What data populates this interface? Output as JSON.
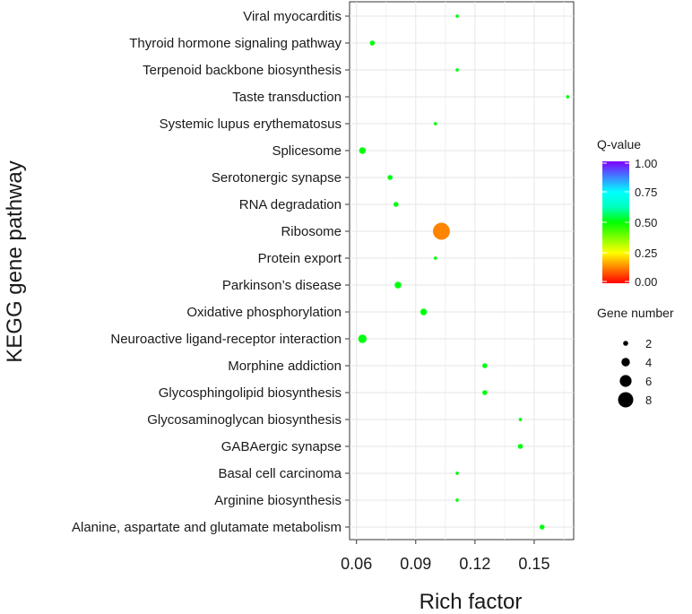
{
  "chart_data": {
    "type": "scatter",
    "xlabel": "Rich factor",
    "ylabel": "KEGG gene pathway",
    "xlim": [
      0.0565,
      0.17
    ],
    "xticks": [
      0.06,
      0.09,
      0.12,
      0.15
    ],
    "grid": true,
    "points": [
      {
        "pathway": "Viral myocarditis",
        "rich_factor": 0.111,
        "q_value": 0.51,
        "gene_number": 1
      },
      {
        "pathway": "Thyroid hormone signaling pathway",
        "rich_factor": 0.068,
        "q_value": 0.51,
        "gene_number": 2
      },
      {
        "pathway": "Terpenoid backbone biosynthesis",
        "rich_factor": 0.111,
        "q_value": 0.51,
        "gene_number": 1
      },
      {
        "pathway": "Taste transduction",
        "rich_factor": 0.167,
        "q_value": 0.51,
        "gene_number": 1
      },
      {
        "pathway": "Systemic lupus erythematosus",
        "rich_factor": 0.1,
        "q_value": 0.51,
        "gene_number": 1
      },
      {
        "pathway": "Splicesome",
        "rich_factor": 0.063,
        "q_value": 0.51,
        "gene_number": 3
      },
      {
        "pathway": "Serotonergic synapse",
        "rich_factor": 0.077,
        "q_value": 0.51,
        "gene_number": 2
      },
      {
        "pathway": "RNA degradation",
        "rich_factor": 0.08,
        "q_value": 0.51,
        "gene_number": 2
      },
      {
        "pathway": "Ribosome",
        "rich_factor": 0.103,
        "q_value": 0.13,
        "gene_number": 9
      },
      {
        "pathway": "Protein export",
        "rich_factor": 0.1,
        "q_value": 0.51,
        "gene_number": 1
      },
      {
        "pathway": "Parkinson’s disease",
        "rich_factor": 0.081,
        "q_value": 0.51,
        "gene_number": 3
      },
      {
        "pathway": "Oxidative phosphorylation",
        "rich_factor": 0.094,
        "q_value": 0.51,
        "gene_number": 3
      },
      {
        "pathway": "Neuroactive ligand-receptor interaction",
        "rich_factor": 0.063,
        "q_value": 0.51,
        "gene_number": 4
      },
      {
        "pathway": "Morphine addiction",
        "rich_factor": 0.125,
        "q_value": 0.51,
        "gene_number": 2
      },
      {
        "pathway": "Glycosphingolipid biosynthesis",
        "rich_factor": 0.125,
        "q_value": 0.51,
        "gene_number": 2
      },
      {
        "pathway": "Glycosaminoglycan biosynthesis",
        "rich_factor": 0.143,
        "q_value": 0.51,
        "gene_number": 1
      },
      {
        "pathway": "GABAergic synapse",
        "rich_factor": 0.143,
        "q_value": 0.51,
        "gene_number": 2
      },
      {
        "pathway": "Basal cell carcinoma",
        "rich_factor": 0.111,
        "q_value": 0.51,
        "gene_number": 1
      },
      {
        "pathway": "Arginine biosynthesis",
        "rich_factor": 0.111,
        "q_value": 0.51,
        "gene_number": 1
      },
      {
        "pathway": "Alanine, aspartate and glutamate metabolism",
        "rich_factor": 0.154,
        "q_value": 0.51,
        "gene_number": 2
      }
    ],
    "legend": {
      "color_title": "Q-value",
      "color_ticks": [
        0.0,
        0.25,
        0.5,
        0.75,
        1.0
      ],
      "color_tick_labels": [
        "0.00",
        "0.25",
        "0.50",
        "0.75",
        "1.00"
      ],
      "colors": [
        "#ff0000",
        "#ff7f00",
        "#ffff00",
        "#7fff00",
        "#00ff00",
        "#00ffbf",
        "#00ffff",
        "#4080ff",
        "#8000ff"
      ],
      "size_title": "Gene number",
      "size_values": [
        2,
        4,
        6,
        8
      ],
      "size_labels": [
        "2",
        "4",
        "6",
        "8"
      ],
      "placement": "right"
    }
  }
}
